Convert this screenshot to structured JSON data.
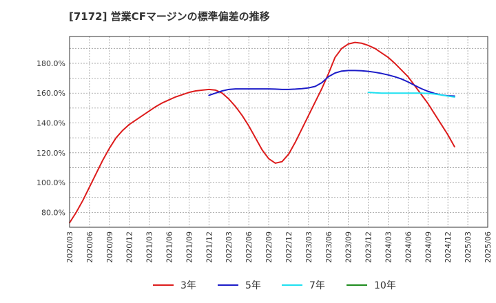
{
  "title": "[7172]  営業CFマージンの標準偏差の推移",
  "chart_data": {
    "type": "line",
    "title": "[7172]  営業CFマージンの標準偏差の推移",
    "xlabel": "",
    "ylabel": "",
    "x_ticks": [
      "2020/03",
      "2020/06",
      "2020/09",
      "2020/12",
      "2021/03",
      "2021/06",
      "2021/09",
      "2021/12",
      "2022/03",
      "2022/06",
      "2022/09",
      "2022/12",
      "2023/03",
      "2023/06",
      "2023/09",
      "2023/12",
      "2024/03",
      "2024/06",
      "2024/09",
      "2024/12",
      "2025/03",
      "2025/06"
    ],
    "y_ticks": [
      80,
      100,
      120,
      140,
      160,
      180
    ],
    "y_tick_labels": [
      "80.0%",
      "100.0%",
      "120.0%",
      "140.0%",
      "160.0%",
      "180.0%"
    ],
    "xlim": [
      "2020/03",
      "2025/06"
    ],
    "ylim": [
      70,
      198
    ],
    "grid": true,
    "legend_position": "bottom",
    "series": [
      {
        "name": "3年",
        "color": "#dd1c1c",
        "points": [
          [
            "2020/03",
            73
          ],
          [
            "2020/04",
            80
          ],
          [
            "2020/05",
            88
          ],
          [
            "2020/06",
            97
          ],
          [
            "2020/07",
            106
          ],
          [
            "2020/08",
            115
          ],
          [
            "2020/09",
            123
          ],
          [
            "2020/10",
            130
          ],
          [
            "2020/11",
            135
          ],
          [
            "2020/12",
            139
          ],
          [
            "2021/01",
            142
          ],
          [
            "2021/02",
            145
          ],
          [
            "2021/03",
            148
          ],
          [
            "2021/04",
            151
          ],
          [
            "2021/05",
            153.5
          ],
          [
            "2021/06",
            155.5
          ],
          [
            "2021/07",
            157.5
          ],
          [
            "2021/08",
            159
          ],
          [
            "2021/09",
            160.5
          ],
          [
            "2021/10",
            161.5
          ],
          [
            "2021/11",
            162
          ],
          [
            "2021/12",
            162.5
          ],
          [
            "2022/01",
            162
          ],
          [
            "2022/02",
            160
          ],
          [
            "2022/03",
            156
          ],
          [
            "2022/04",
            151
          ],
          [
            "2022/05",
            145
          ],
          [
            "2022/06",
            138
          ],
          [
            "2022/07",
            130
          ],
          [
            "2022/08",
            122
          ],
          [
            "2022/09",
            116
          ],
          [
            "2022/10",
            113
          ],
          [
            "2022/11",
            114
          ],
          [
            "2022/12",
            119
          ],
          [
            "2023/01",
            127
          ],
          [
            "2023/02",
            136
          ],
          [
            "2023/03",
            145
          ],
          [
            "2023/04",
            154
          ],
          [
            "2023/05",
            163
          ],
          [
            "2023/06",
            173
          ],
          [
            "2023/07",
            184
          ],
          [
            "2023/08",
            190
          ],
          [
            "2023/09",
            193
          ],
          [
            "2023/10",
            194
          ],
          [
            "2023/11",
            193.5
          ],
          [
            "2023/12",
            192
          ],
          [
            "2024/01",
            190
          ],
          [
            "2024/02",
            187
          ],
          [
            "2024/03",
            184
          ],
          [
            "2024/04",
            180
          ],
          [
            "2024/05",
            175.5
          ],
          [
            "2024/06",
            171
          ],
          [
            "2024/07",
            165
          ],
          [
            "2024/08",
            159
          ],
          [
            "2024/09",
            153
          ],
          [
            "2024/10",
            146
          ],
          [
            "2024/11",
            139
          ],
          [
            "2024/12",
            132
          ],
          [
            "2025/01",
            124
          ]
        ]
      },
      {
        "name": "5年",
        "color": "#1b1bc8",
        "points": [
          [
            "2021/12",
            158.5
          ],
          [
            "2022/01",
            160
          ],
          [
            "2022/02",
            161.5
          ],
          [
            "2022/03",
            162.5
          ],
          [
            "2022/04",
            162.8
          ],
          [
            "2022/05",
            162.8
          ],
          [
            "2022/06",
            162.8
          ],
          [
            "2022/07",
            162.8
          ],
          [
            "2022/08",
            162.8
          ],
          [
            "2022/09",
            162.8
          ],
          [
            "2022/10",
            162.7
          ],
          [
            "2022/11",
            162.5
          ],
          [
            "2022/12",
            162.5
          ],
          [
            "2023/01",
            162.7
          ],
          [
            "2023/02",
            163
          ],
          [
            "2023/03",
            163.5
          ],
          [
            "2023/04",
            164.5
          ],
          [
            "2023/05",
            167
          ],
          [
            "2023/06",
            171
          ],
          [
            "2023/07",
            173.5
          ],
          [
            "2023/08",
            174.8
          ],
          [
            "2023/09",
            175.2
          ],
          [
            "2023/10",
            175.2
          ],
          [
            "2023/11",
            175
          ],
          [
            "2023/12",
            174.6
          ],
          [
            "2024/01",
            174
          ],
          [
            "2024/02",
            173.2
          ],
          [
            "2024/03",
            172.2
          ],
          [
            "2024/04",
            171
          ],
          [
            "2024/05",
            169.5
          ],
          [
            "2024/06",
            167.5
          ],
          [
            "2024/07",
            165.2
          ],
          [
            "2024/08",
            163
          ],
          [
            "2024/09",
            161.2
          ],
          [
            "2024/10",
            159.8
          ],
          [
            "2024/11",
            158.8
          ],
          [
            "2024/12",
            158.2
          ],
          [
            "2025/01",
            158
          ]
        ]
      },
      {
        "name": "7年",
        "color": "#1ee0f0",
        "points": [
          [
            "2023/12",
            160.5
          ],
          [
            "2024/01",
            160.2
          ],
          [
            "2024/02",
            160
          ],
          [
            "2024/03",
            160
          ],
          [
            "2024/04",
            160
          ],
          [
            "2024/05",
            160
          ],
          [
            "2024/06",
            160
          ],
          [
            "2024/07",
            160
          ],
          [
            "2024/08",
            160
          ],
          [
            "2024/09",
            159.8
          ],
          [
            "2024/10",
            159.4
          ],
          [
            "2024/11",
            158.8
          ],
          [
            "2024/12",
            158
          ],
          [
            "2025/01",
            157.4
          ]
        ]
      },
      {
        "name": "10年",
        "color": "#1e8c1e",
        "points": []
      }
    ]
  }
}
